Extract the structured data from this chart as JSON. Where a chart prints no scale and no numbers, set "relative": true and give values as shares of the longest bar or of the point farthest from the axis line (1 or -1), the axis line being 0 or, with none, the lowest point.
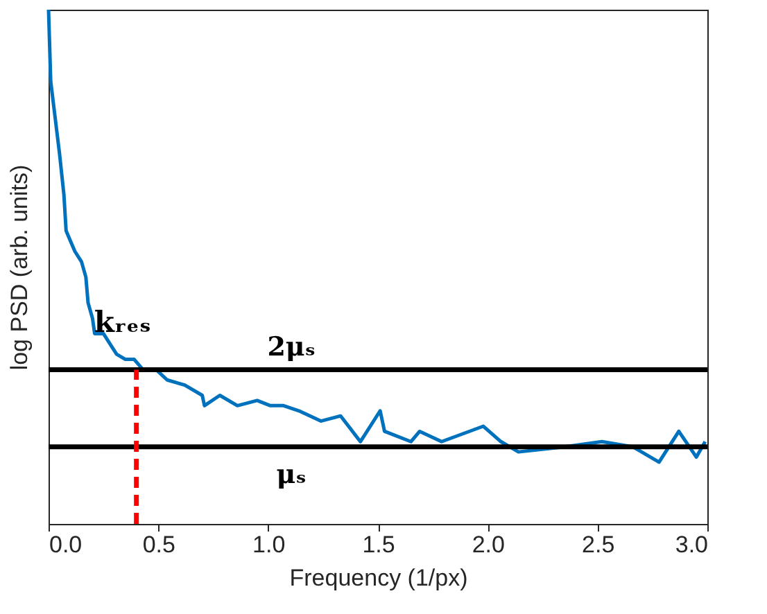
{
  "chart_data": {
    "type": "line",
    "xlabel": "Frequency (1/px)",
    "ylabel": "log PSD (arb. units)",
    "relative": true,
    "xlim": [
      0,
      3
    ],
    "xticks": [
      {
        "value": 0,
        "label": "0.0"
      },
      {
        "value": 0.5,
        "label": "0.5"
      },
      {
        "value": 1,
        "label": "1.0"
      },
      {
        "value": 1.5,
        "label": "1.5"
      },
      {
        "value": 2,
        "label": "2.0"
      },
      {
        "value": 2.5,
        "label": "2.5"
      },
      {
        "value": 3,
        "label": "3.0"
      }
    ],
    "grid": false,
    "series": [
      {
        "color": "#0072bd",
        "x": [
          0.0,
          0.01,
          0.03,
          0.05,
          0.07,
          0.08,
          0.1,
          0.12,
          0.15,
          0.17,
          0.18,
          0.2,
          0.21,
          0.25,
          0.28,
          0.31,
          0.35,
          0.39,
          0.43,
          0.49,
          0.54,
          0.62,
          0.7,
          0.71,
          0.78,
          0.86,
          0.95,
          1.01,
          1.07,
          1.14,
          1.24,
          1.33,
          1.42,
          1.51,
          1.53,
          1.65,
          1.69,
          1.79,
          1.98,
          2.06,
          2.14,
          2.35,
          2.52,
          2.66,
          2.78,
          2.87,
          2.95,
          2.99
        ],
        "values": [
          1.0,
          0.86,
          0.79,
          0.72,
          0.64,
          0.57,
          0.55,
          0.53,
          0.51,
          0.48,
          0.43,
          0.4,
          0.37,
          0.37,
          0.35,
          0.33,
          0.32,
          0.32,
          0.3,
          0.3,
          0.28,
          0.27,
          0.25,
          0.23,
          0.25,
          0.23,
          0.24,
          0.23,
          0.23,
          0.22,
          0.2,
          0.21,
          0.16,
          0.22,
          0.18,
          0.16,
          0.18,
          0.16,
          0.19,
          0.16,
          0.14,
          0.15,
          0.16,
          0.15,
          0.12,
          0.18,
          0.13,
          0.16
        ]
      }
    ],
    "ref_lines": [
      {
        "axis": "y",
        "value": 0.3,
        "label": "2μₛ",
        "color": "#000000",
        "line_style": "solid"
      },
      {
        "axis": "y",
        "value": 0.15,
        "label": "μₛ",
        "color": "#000000",
        "line_style": "solid"
      },
      {
        "axis": "x",
        "value": 0.4,
        "label": "kᵣₑₛ",
        "color": "#ff0000",
        "line_style": "dashed"
      }
    ]
  }
}
